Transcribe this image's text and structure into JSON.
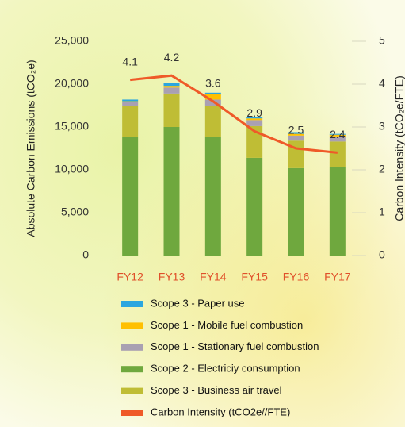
{
  "chart_data": {
    "type": "bar",
    "stacked": true,
    "categories": [
      "FY12",
      "FY13",
      "FY14",
      "FY15",
      "FY16",
      "FY17"
    ],
    "ylabel": "Absolute Carbon Emissions (tCO₂e)",
    "y2label": "Carbon Intensity  (tCO₂e/FTE)",
    "ylim": [
      0,
      25000
    ],
    "yticks": [
      0,
      {
        "value": 5000,
        "label": "5,000"
      },
      {
        "value": 10000,
        "label": "10,000"
      },
      {
        "value": 15000,
        "label": "15,000"
      },
      {
        "value": 20000,
        "label": "20,000"
      },
      {
        "value": 25000,
        "label": "25,000"
      }
    ],
    "y2lim": [
      0,
      5
    ],
    "y2ticks": [
      0,
      1,
      2,
      3,
      4,
      5
    ],
    "grid": false,
    "series": [
      {
        "name": "Scope 2 - Electriciy consumption",
        "color": "#6fa83e",
        "values": [
          13800,
          15000,
          13800,
          11400,
          10200,
          10300
        ]
      },
      {
        "name": "Scope 3 - Business air travel",
        "color": "#bfbd35",
        "values": [
          3700,
          3900,
          3700,
          3700,
          3200,
          3000
        ]
      },
      {
        "name": "Scope 1 - Stationary fuel combustion",
        "color": "#a9a0b2",
        "values": [
          400,
          700,
          700,
          700,
          600,
          600
        ]
      },
      {
        "name": "Scope 1 - Mobile fuel combustion",
        "color": "#ffc000",
        "values": [
          100,
          200,
          600,
          200,
          200,
          200
        ]
      },
      {
        "name": "Scope 3 - Paper use",
        "color": "#2ba6df",
        "values": [
          200,
          300,
          200,
          200,
          200,
          100
        ]
      },
      {
        "name": "Carbon Intensity (tCO2e//FTE)",
        "color": "#ef5a28",
        "type": "line",
        "axis": "y2",
        "values": [
          4.1,
          4.2,
          3.6,
          2.9,
          2.5,
          2.4
        ]
      }
    ]
  }
}
